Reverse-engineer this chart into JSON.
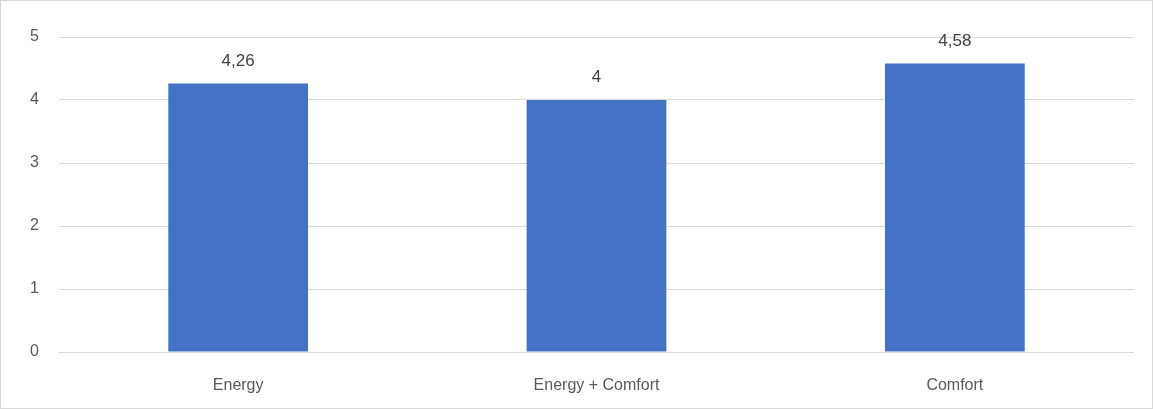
{
  "chart_data": {
    "type": "bar",
    "categories": [
      "Energy",
      "Energy + Comfort",
      "Comfort"
    ],
    "values": [
      4.26,
      4,
      4.58
    ],
    "color": "#4472c4",
    "value_labels": [
      "4,26",
      "4",
      "4,58"
    ],
    "ylim": [
      0,
      5
    ],
    "yticks": [
      0,
      1,
      2,
      3,
      4,
      5
    ],
    "grid": "y",
    "legend": false
  }
}
